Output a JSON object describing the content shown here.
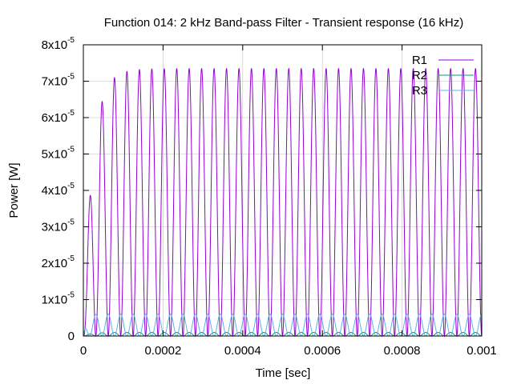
{
  "chart_data": {
    "type": "line",
    "title": "Function 014: 2 kHz Band-pass Filter - Transient response (16 kHz)",
    "xlabel": "Time [sec]",
    "ylabel": "Power [W]",
    "xlim": [
      0,
      0.001
    ],
    "ylim": [
      0,
      8e-05
    ],
    "grid": true,
    "legend_position": "top-right",
    "x_ticks": [
      {
        "value": 0,
        "label": "0"
      },
      {
        "value": 0.0002,
        "label": "0.0002"
      },
      {
        "value": 0.0004,
        "label": "0.0004"
      },
      {
        "value": 0.0006,
        "label": "0.0006"
      },
      {
        "value": 0.0008,
        "label": "0.0008"
      },
      {
        "value": 0.001,
        "label": "0.001"
      }
    ],
    "y_ticks": [
      {
        "value": 0,
        "mant": "0",
        "exp": ""
      },
      {
        "value": 1e-05,
        "mant": "1x10",
        "exp": "-5"
      },
      {
        "value": 2e-05,
        "mant": "2x10",
        "exp": "-5"
      },
      {
        "value": 3e-05,
        "mant": "3x10",
        "exp": "-5"
      },
      {
        "value": 4e-05,
        "mant": "4x10",
        "exp": "-5"
      },
      {
        "value": 5e-05,
        "mant": "5x10",
        "exp": "-5"
      },
      {
        "value": 6e-05,
        "mant": "6x10",
        "exp": "-5"
      },
      {
        "value": 7e-05,
        "mant": "7x10",
        "exp": "-5"
      },
      {
        "value": 8e-05,
        "mant": "8x10",
        "exp": "-5"
      }
    ],
    "series": [
      {
        "name": "R1",
        "color": "#9400d3",
        "shape": "squared-sinusoid",
        "frequency_hz": 32000,
        "peak_value": 7.35e-05,
        "first_peak_value": 6.6e-05,
        "phase_x": 0.0,
        "rise_time": 2e-05
      },
      {
        "name": "R2",
        "color": "#009e73",
        "shape": "squared-sinusoid",
        "frequency_hz": 32000,
        "peak_value": 1e-06,
        "first_peak_value": 1e-06,
        "phase_x": 0.0,
        "rise_time": 2e-05
      },
      {
        "name": "R3",
        "color": "#56b4e9",
        "shape": "squared-sinusoid",
        "frequency_hz": 32000,
        "peak_value": 6e-06,
        "first_peak_value": 7e-06,
        "phase_x": 1.56e-05,
        "rise_time": 1e-05
      }
    ]
  }
}
